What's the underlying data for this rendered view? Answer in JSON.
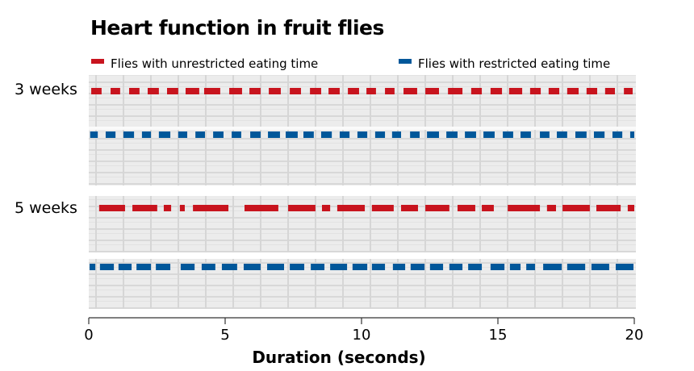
{
  "chart_data": {
    "type": "bar",
    "title": "Heart function in fruit flies",
    "xlabel": "Duration (seconds)",
    "ylabel": "",
    "xlim": [
      0,
      20
    ],
    "xticks": [
      "0",
      "5",
      "10",
      "15",
      "20"
    ],
    "grid": false,
    "legend_placement": "top",
    "legend": [
      {
        "label": "Flies with unrestricted eating time",
        "color": "#c8141e"
      },
      {
        "label": "Flies with restricted eating time",
        "color": "#00579a"
      }
    ],
    "groups": [
      {
        "label": "3 weeks",
        "series": [
          {
            "name": "Flies with unrestricted eating time",
            "color": "#c8141e",
            "segments": [
              [
                0.09,
                0.47
              ],
              [
                0.8,
                1.15
              ],
              [
                1.48,
                1.86
              ],
              [
                2.16,
                2.57
              ],
              [
                2.87,
                3.28
              ],
              [
                3.55,
                4.05
              ],
              [
                4.23,
                4.82
              ],
              [
                5.15,
                5.62
              ],
              [
                5.89,
                6.3
              ],
              [
                6.6,
                7.04
              ],
              [
                7.37,
                7.78
              ],
              [
                8.11,
                8.52
              ],
              [
                8.79,
                9.2
              ],
              [
                9.5,
                9.91
              ],
              [
                10.18,
                10.53
              ],
              [
                10.86,
                11.21
              ],
              [
                11.54,
                12.04
              ],
              [
                12.34,
                12.84
              ],
              [
                13.17,
                13.7
              ],
              [
                14.02,
                14.41
              ],
              [
                14.73,
                15.15
              ],
              [
                15.41,
                15.89
              ],
              [
                16.18,
                16.57
              ],
              [
                16.86,
                17.25
              ],
              [
                17.54,
                17.96
              ],
              [
                18.25,
                18.64
              ],
              [
                18.93,
                19.29
              ],
              [
                19.62,
                19.94
              ]
            ]
          },
          {
            "name": "Flies with restricted eating time",
            "color": "#00579a",
            "segments": [
              [
                0.05,
                0.33
              ],
              [
                0.62,
                0.98
              ],
              [
                1.27,
                1.66
              ],
              [
                1.95,
                2.28
              ],
              [
                2.57,
                2.99
              ],
              [
                3.28,
                3.61
              ],
              [
                3.91,
                4.26
              ],
              [
                4.56,
                4.94
              ],
              [
                5.24,
                5.59
              ],
              [
                5.92,
                6.3
              ],
              [
                6.57,
                7.01
              ],
              [
                7.22,
                7.66
              ],
              [
                7.87,
                8.25
              ],
              [
                8.52,
                8.91
              ],
              [
                9.2,
                9.56
              ],
              [
                9.85,
                10.21
              ],
              [
                10.5,
                10.86
              ],
              [
                11.12,
                11.45
              ],
              [
                11.78,
                12.13
              ],
              [
                12.4,
                12.84
              ],
              [
                13.11,
                13.52
              ],
              [
                13.79,
                14.2
              ],
              [
                14.47,
                14.88
              ],
              [
                15.18,
                15.56
              ],
              [
                15.83,
                16.21
              ],
              [
                16.54,
                16.89
              ],
              [
                17.16,
                17.54
              ],
              [
                17.84,
                18.25
              ],
              [
                18.52,
                18.91
              ],
              [
                19.2,
                19.56
              ],
              [
                19.85,
                20.0
              ]
            ]
          }
        ]
      },
      {
        "label": "5 weeks",
        "series": [
          {
            "name": "Flies with unrestricted eating time",
            "color": "#c8141e",
            "segments": [
              [
                0.38,
                1.33
              ],
              [
                1.6,
                2.51
              ],
              [
                2.75,
                3.02
              ],
              [
                3.34,
                3.52
              ],
              [
                3.82,
                5.12
              ],
              [
                5.71,
                6.95
              ],
              [
                7.31,
                8.31
              ],
              [
                8.55,
                8.85
              ],
              [
                9.11,
                10.12
              ],
              [
                10.38,
                11.18
              ],
              [
                11.45,
                12.07
              ],
              [
                12.34,
                13.22
              ],
              [
                13.52,
                14.17
              ],
              [
                14.41,
                14.85
              ],
              [
                15.36,
                16.54
              ],
              [
                16.8,
                17.13
              ],
              [
                17.37,
                18.37
              ],
              [
                18.61,
                19.5
              ],
              [
                19.76,
                20.0
              ]
            ]
          },
          {
            "name": "Flies with restricted eating time",
            "color": "#00579a",
            "segments": [
              [
                0.03,
                0.24
              ],
              [
                0.41,
                0.92
              ],
              [
                1.09,
                1.57
              ],
              [
                1.75,
                2.28
              ],
              [
                2.46,
                2.99
              ],
              [
                3.37,
                3.88
              ],
              [
                4.14,
                4.64
              ],
              [
                4.88,
                5.44
              ],
              [
                5.68,
                6.3
              ],
              [
                6.54,
                7.16
              ],
              [
                7.37,
                7.9
              ],
              [
                8.14,
                8.64
              ],
              [
                8.85,
                9.47
              ],
              [
                9.67,
                10.21
              ],
              [
                10.38,
                10.86
              ],
              [
                11.15,
                11.6
              ],
              [
                11.8,
                12.31
              ],
              [
                12.51,
                12.99
              ],
              [
                13.22,
                13.7
              ],
              [
                13.91,
                14.41
              ],
              [
                14.73,
                15.24
              ],
              [
                15.44,
                15.83
              ],
              [
                16.04,
                16.36
              ],
              [
                16.66,
                17.34
              ],
              [
                17.54,
                18.2
              ],
              [
                18.43,
                19.08
              ],
              [
                19.32,
                19.97
              ]
            ]
          }
        ]
      }
    ]
  }
}
